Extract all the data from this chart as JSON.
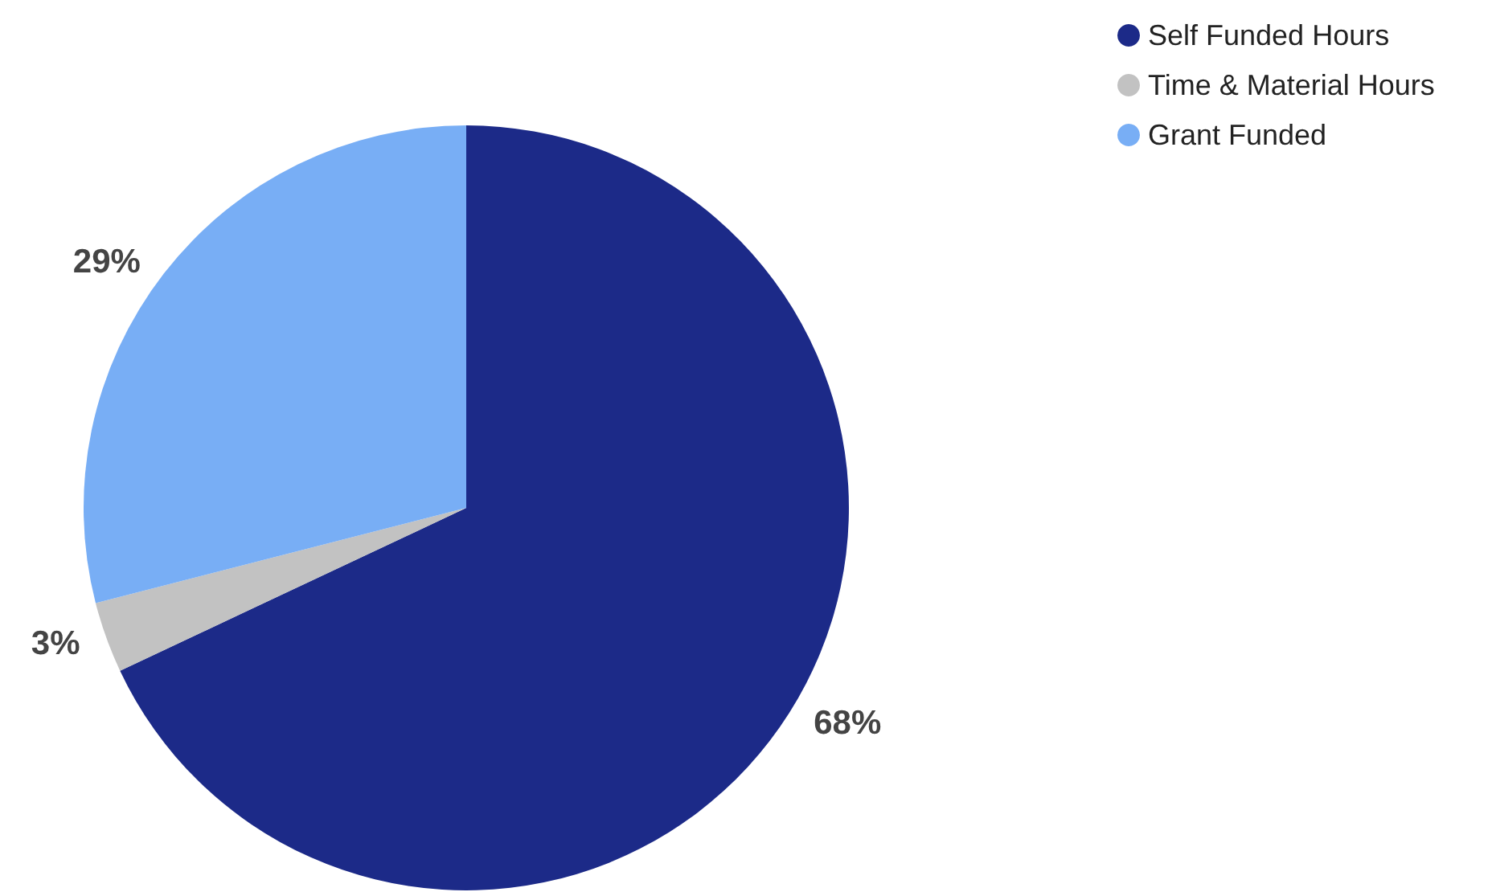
{
  "chart_data": {
    "type": "pie",
    "categories": [
      "Self Funded Hours",
      "Time & Material Hours",
      "Grant Funded"
    ],
    "values": [
      68,
      3,
      29
    ],
    "colors": [
      "#1c2a88",
      "#c2c2c2",
      "#78aef5"
    ],
    "value_labels": [
      "68%",
      "3%",
      "29%"
    ],
    "legend": "top right"
  }
}
